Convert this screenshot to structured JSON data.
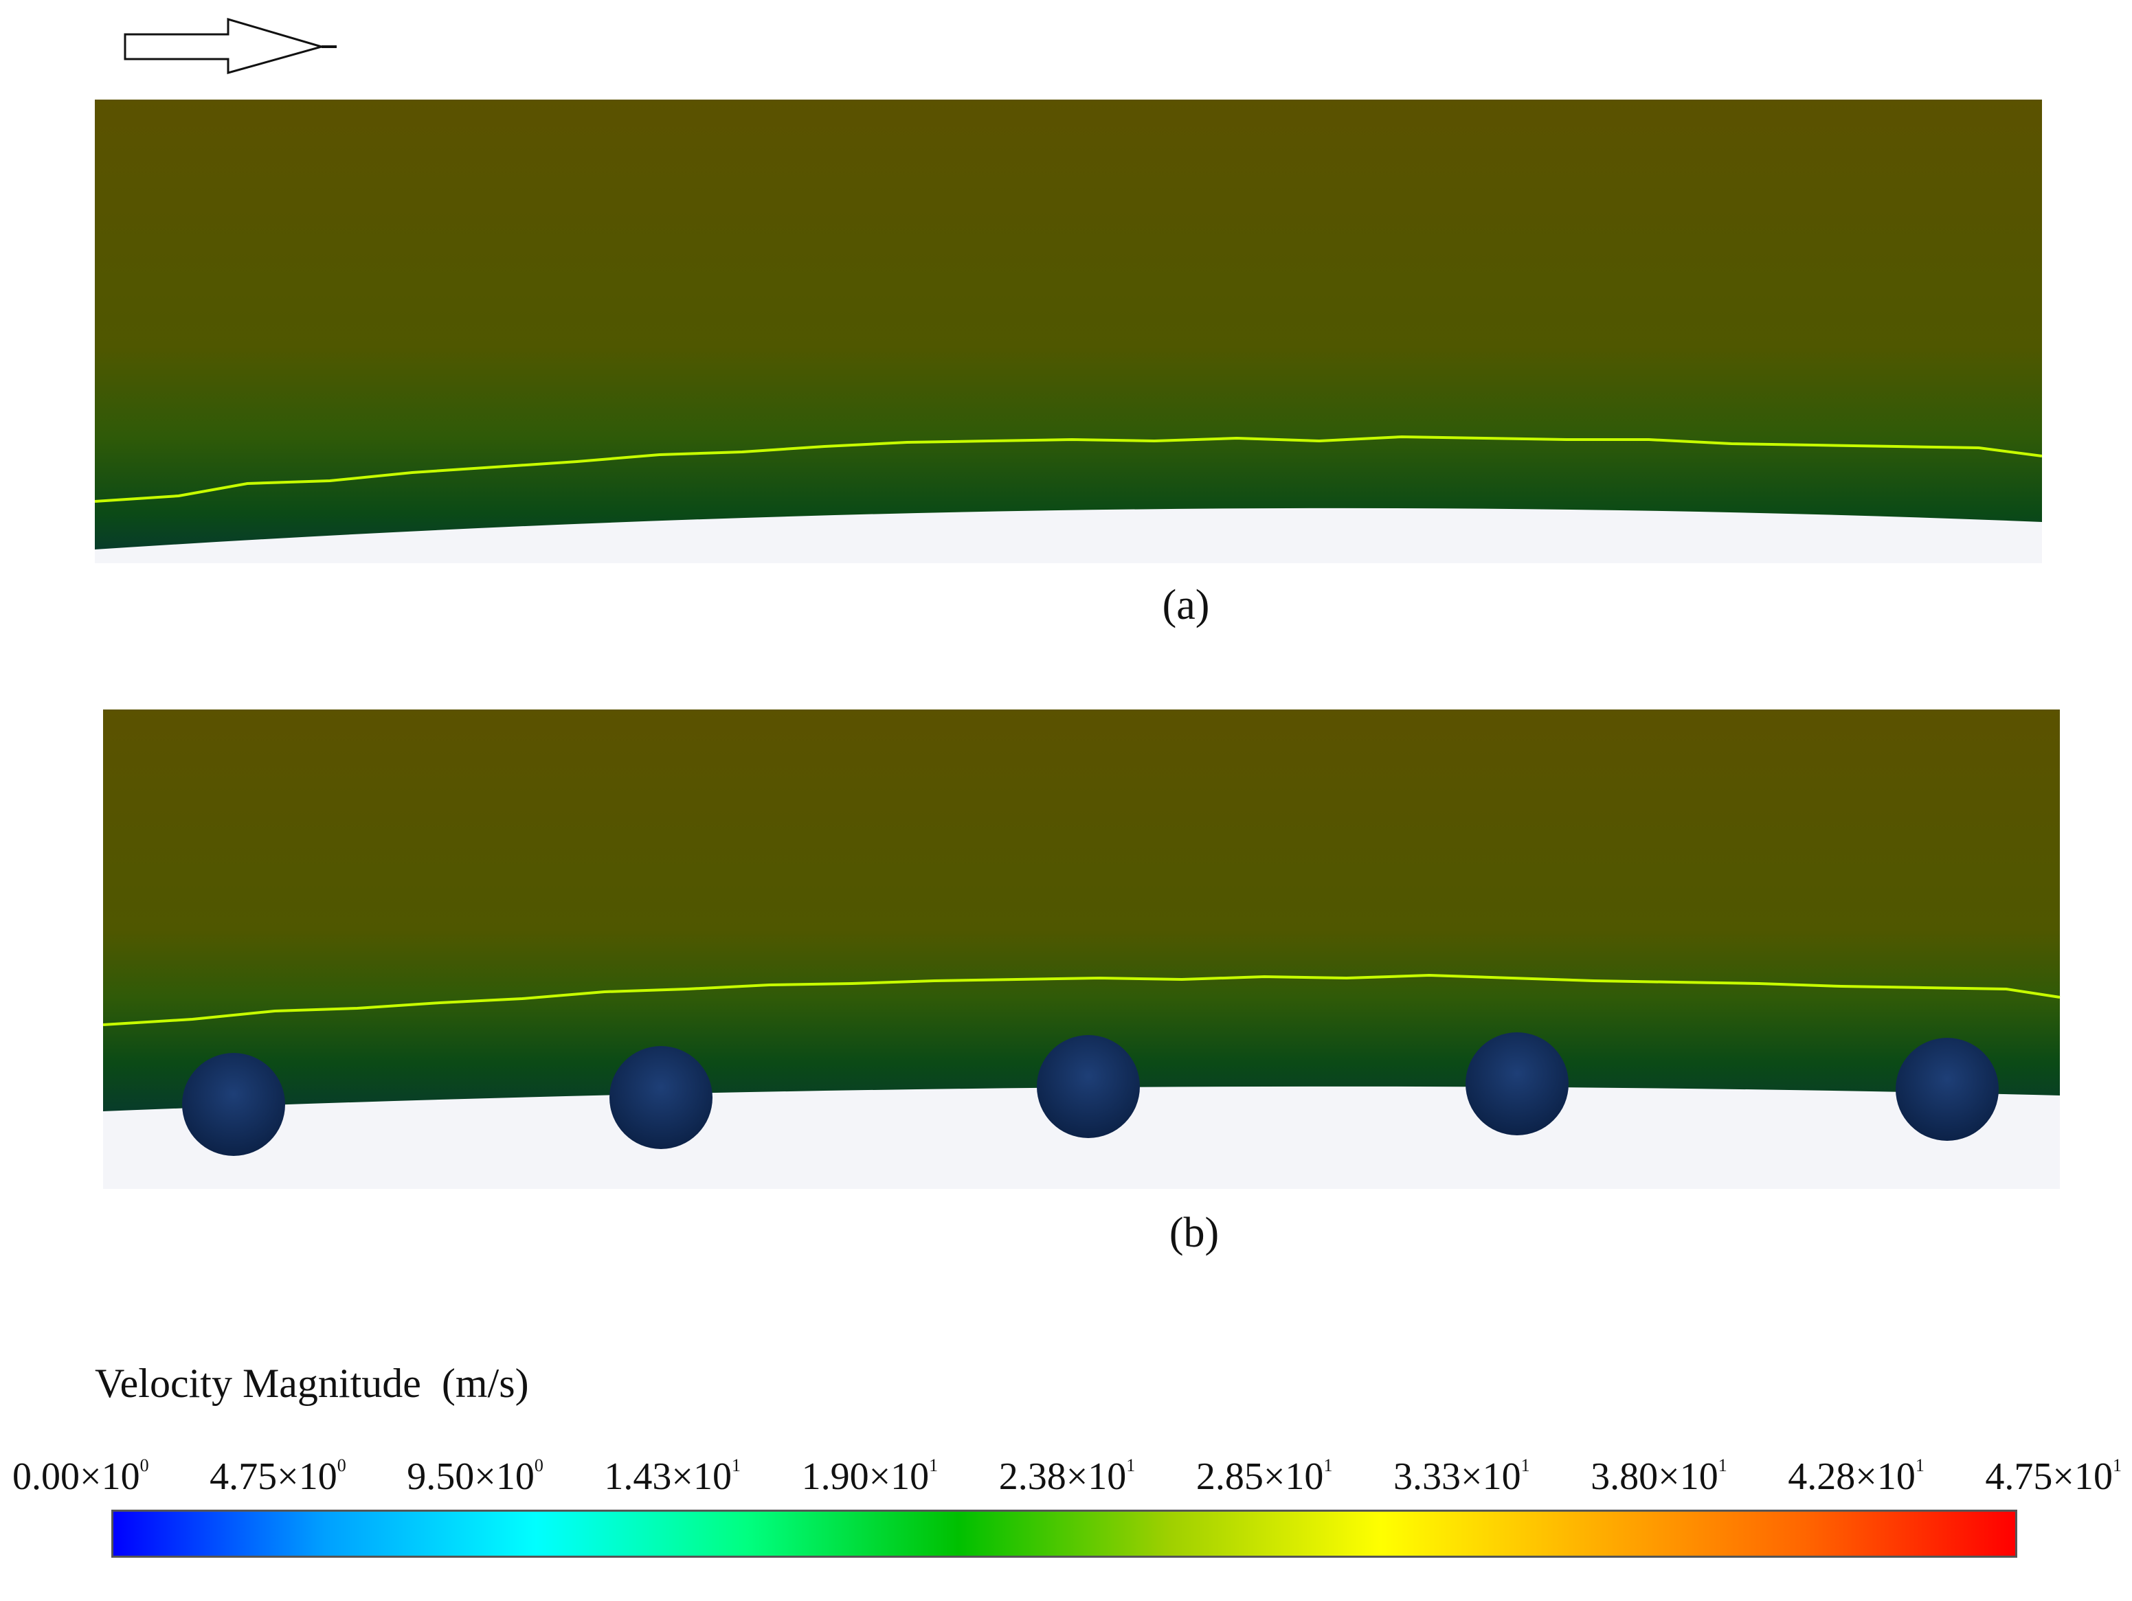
{
  "panels": [
    {
      "label": "(a)",
      "has_bumps": false
    },
    {
      "label": "(b)",
      "has_bumps": true,
      "bump_count": 5
    }
  ],
  "legend": {
    "title": "Velocity Magnitude  (m/s)",
    "ticks": [
      {
        "mantissa": "0.00×10",
        "exp": "0"
      },
      {
        "mantissa": "4.75×10",
        "exp": "0"
      },
      {
        "mantissa": "9.50×10",
        "exp": "0"
      },
      {
        "mantissa": "1.43×10",
        "exp": "1"
      },
      {
        "mantissa": "1.90×10",
        "exp": "1"
      },
      {
        "mantissa": "2.38×10",
        "exp": "1"
      },
      {
        "mantissa": "2.85×10",
        "exp": "1"
      },
      {
        "mantissa": "3.33×10",
        "exp": "1"
      },
      {
        "mantissa": "3.80×10",
        "exp": "1"
      },
      {
        "mantissa": "4.28×10",
        "exp": "1"
      },
      {
        "mantissa": "4.75×10",
        "exp": "1"
      }
    ],
    "colorbar_colors": [
      "#0000ff",
      "#00a0ff",
      "#00ffff",
      "#00ff80",
      "#00c000",
      "#9fd000",
      "#ffff00",
      "#ffb000",
      "#ff6600",
      "#ff0000"
    ]
  },
  "colors": {
    "freestream": "#535300",
    "boundary_layer": "#004a14",
    "near_wall": "#0a2a55",
    "edge_line": "#c8ff00",
    "surface": "#f4f5f9"
  }
}
